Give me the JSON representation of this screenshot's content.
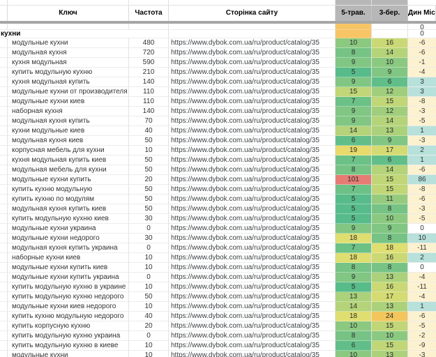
{
  "columns": {
    "key": "Ключ",
    "freq": "Частота",
    "url": "Сторінка сайту",
    "may5": "5-трав.",
    "mar3": "3-бер.",
    "dyn": "Дин Місяць"
  },
  "section": {
    "label": "кухни",
    "pre_dyn": "0",
    "dyn": "0"
  },
  "url": "https://www.dybok.com.ua/ru/product/catalog/35",
  "colors": {
    "header_bg": "#b7b7b7",
    "freeze_divider": "#a6a6a6",
    "orange_cell": "#f7c566",
    "dyn_negative": "#fdf2d0",
    "dyn_zero": "#ffffff",
    "dyn_positive": "#b7e1da",
    "gridline": "#e2e2e2",
    "red_alert": "#e67c73",
    "green_best": "#57bb8a"
  },
  "rank_colors": {
    "5": "#57bb8a",
    "6": "#61be88",
    "7": "#6cc187",
    "8": "#76c385",
    "9": "#81c683",
    "10": "#8bc981",
    "11": "#96cb7f",
    "12": "#a0ce7d",
    "13": "#abd17b",
    "14": "#b5d379",
    "15": "#c0d677",
    "16": "#cad975",
    "17": "#d5db73",
    "18": "#dfde71",
    "19": "#e8da6b",
    "24": "#f2c65c",
    "101": "#e67c73"
  },
  "rows": [
    {
      "key": "модульные кухни",
      "freq": "480",
      "may5": "10",
      "mar3": "16",
      "dyn": "-6"
    },
    {
      "key": "модульная кухня",
      "freq": "720",
      "may5": "8",
      "mar3": "14",
      "dyn": "-6"
    },
    {
      "key": "кухня модульная",
      "freq": "590",
      "may5": "9",
      "mar3": "10",
      "dyn": "-1"
    },
    {
      "key": "купить модульную кухню",
      "freq": "210",
      "may5": "5",
      "mar3": "9",
      "dyn": "-4"
    },
    {
      "key": "кухня модульная купить",
      "freq": "140",
      "may5": "9",
      "mar3": "6",
      "dyn": "3"
    },
    {
      "key": "модульные кухни от производителя",
      "freq": "110",
      "may5": "15",
      "mar3": "12",
      "dyn": "3"
    },
    {
      "key": "модульные кухни киев",
      "freq": "110",
      "may5": "7",
      "mar3": "15",
      "dyn": "-8"
    },
    {
      "key": "наборная кухня",
      "freq": "140",
      "may5": "9",
      "mar3": "12",
      "dyn": "-3"
    },
    {
      "key": "модульная кухня купить",
      "freq": "70",
      "may5": "9",
      "mar3": "14",
      "dyn": "-5"
    },
    {
      "key": "кухни модульные киев",
      "freq": "40",
      "may5": "14",
      "mar3": "13",
      "dyn": "1"
    },
    {
      "key": "модульная кухня киев",
      "freq": "50",
      "may5": "6",
      "mar3": "9",
      "dyn": "-3"
    },
    {
      "key": "корпусная мебель для кухни",
      "freq": "10",
      "may5": "19",
      "mar3": "17",
      "dyn": "2"
    },
    {
      "key": "кухня модульная купить киев",
      "freq": "50",
      "may5": "7",
      "mar3": "6",
      "dyn": "1"
    },
    {
      "key": "модульная мебель для кухни",
      "freq": "50",
      "may5": "8",
      "mar3": "14",
      "dyn": "-6"
    },
    {
      "key": "модульные кухни купить",
      "freq": "20",
      "may5": "101",
      "mar3": "15",
      "dyn": "86"
    },
    {
      "key": "купить кухню модульную",
      "freq": "50",
      "may5": "7",
      "mar3": "15",
      "dyn": "-8"
    },
    {
      "key": "купить кухню по модулям",
      "freq": "50",
      "may5": "5",
      "mar3": "11",
      "dyn": "-6"
    },
    {
      "key": "модульная кухня купить киев",
      "freq": "50",
      "may5": "5",
      "mar3": "8",
      "dyn": "-3"
    },
    {
      "key": "купить модульную кухню киев",
      "freq": "30",
      "may5": "5",
      "mar3": "10",
      "dyn": "-5"
    },
    {
      "key": "модульные кухни украина",
      "freq": "0",
      "may5": "9",
      "mar3": "9",
      "dyn": "0"
    },
    {
      "key": "модульные кухни недорого",
      "freq": "30",
      "may5": "18",
      "mar3": "8",
      "dyn": "10"
    },
    {
      "key": "модульная кухня купить украина",
      "freq": "0",
      "may5": "7",
      "mar3": "18",
      "dyn": "-11"
    },
    {
      "key": "наборные кухни киев",
      "freq": "10",
      "may5": "18",
      "mar3": "16",
      "dyn": "2"
    },
    {
      "key": "модульные кухни купить киев",
      "freq": "10",
      "may5": "8",
      "mar3": "8",
      "dyn": "0"
    },
    {
      "key": "модульные кухни купить украина",
      "freq": "0",
      "may5": "9",
      "mar3": "13",
      "dyn": "-4"
    },
    {
      "key": "купить модульную кухню в украине",
      "freq": "10",
      "may5": "5",
      "mar3": "16",
      "dyn": "-11"
    },
    {
      "key": "купить модульную кухню недорого",
      "freq": "50",
      "may5": "13",
      "mar3": "17",
      "dyn": "-4"
    },
    {
      "key": "модульные кухни киев недорого",
      "freq": "10",
      "may5": "14",
      "mar3": "13",
      "dyn": "1"
    },
    {
      "key": "купить кухню модульную недорого",
      "freq": "40",
      "may5": "18",
      "mar3": "24",
      "dyn": "-6"
    },
    {
      "key": "купить корпусную кухню",
      "freq": "20",
      "may5": "10",
      "mar3": "15",
      "dyn": "-5"
    },
    {
      "key": "купить модульную кухню украина",
      "freq": "0",
      "may5": "8",
      "mar3": "10",
      "dyn": "-2"
    },
    {
      "key": "купить модульную кухню в киеве",
      "freq": "10",
      "may5": "6",
      "mar3": "15",
      "dyn": "-9"
    }
  ],
  "partial_row": {
    "key": "модульные кухни",
    "freq": "10",
    "may5": "10",
    "mar3": "13",
    "dyn": "-3"
  }
}
